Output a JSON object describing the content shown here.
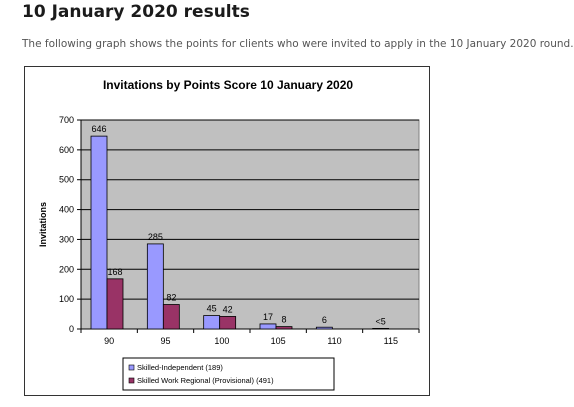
{
  "header": {
    "title": "10 January 2020 results",
    "intro": "The following graph shows the points for clients who were invited to apply in the 10 January 2020 round."
  },
  "chart_data": {
    "type": "bar",
    "title": "Invitations by Points Score 10 January 2020",
    "xlabel": "",
    "ylabel": "Invitations",
    "ylim": [
      0,
      700
    ],
    "yticks": [
      0,
      100,
      200,
      300,
      400,
      500,
      600,
      700
    ],
    "grid": true,
    "legend_position": "bottom",
    "categories": [
      "90",
      "95",
      "100",
      "105",
      "110",
      "115"
    ],
    "series": [
      {
        "name": "Skilled-Independent (189)",
        "color": "#9999ff",
        "values": [
          646,
          285,
          45,
          17,
          6,
          2
        ],
        "labels": [
          "646",
          "285",
          "45",
          "17",
          "6",
          "<5"
        ]
      },
      {
        "name": "Skilled Work Regional (Provisional) (491)",
        "color": "#993366",
        "values": [
          168,
          82,
          42,
          8,
          0,
          0
        ],
        "labels": [
          "168",
          "82",
          "42",
          "8",
          "",
          ""
        ]
      }
    ],
    "colors": {
      "plot_background": "#c0c0c0",
      "gridline": "#000000"
    }
  }
}
